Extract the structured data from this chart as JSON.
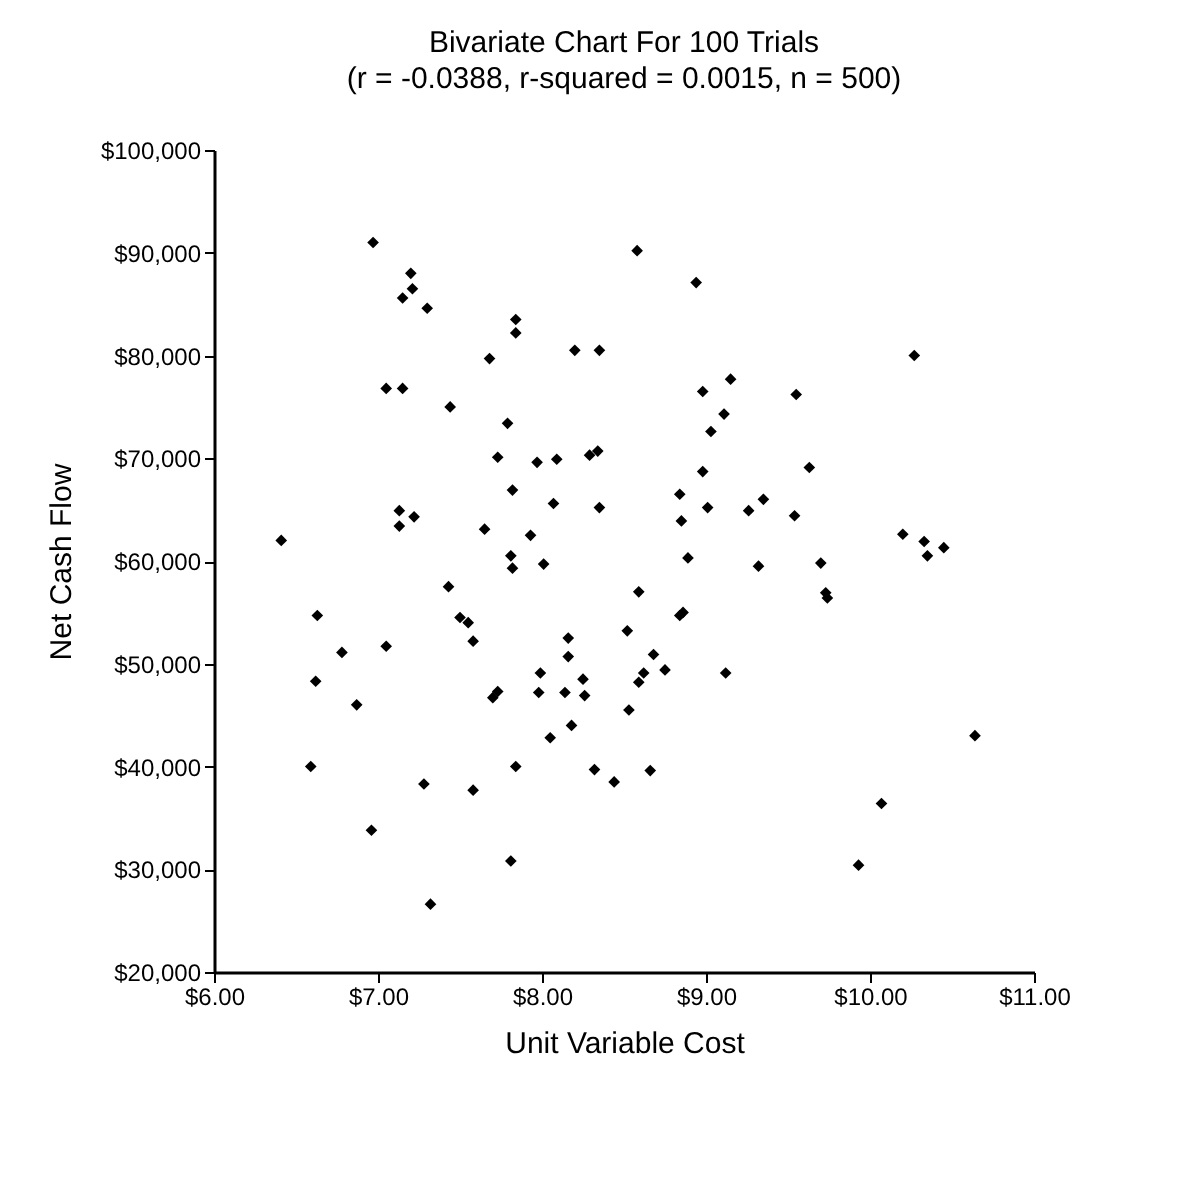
{
  "chart_data": {
    "type": "scatter",
    "title": "Bivariate Chart For 100 Trials",
    "subtitle": "(r = -0.0388, r-squared = 0.0015, n = 500)",
    "xlabel": "Unit Variable Cost",
    "ylabel": "Net Cash Flow",
    "xlim": [
      6,
      11
    ],
    "ylim": [
      20000,
      100000
    ],
    "xticks": [
      {
        "value": 6,
        "label": "$6.00"
      },
      {
        "value": 7,
        "label": "$7.00"
      },
      {
        "value": 8,
        "label": "$8.00"
      },
      {
        "value": 9,
        "label": "$9.00"
      },
      {
        "value": 10,
        "label": "$10.00"
      },
      {
        "value": 11,
        "label": "$11.00"
      }
    ],
    "yticks": [
      {
        "value": 20000,
        "label": "$20,000"
      },
      {
        "value": 30000,
        "label": "$30,000"
      },
      {
        "value": 40000,
        "label": "$40,000"
      },
      {
        "value": 50000,
        "label": "$50,000"
      },
      {
        "value": 60000,
        "label": "$60,000"
      },
      {
        "value": 70000,
        "label": "$70,000"
      },
      {
        "value": 80000,
        "label": "$80,000"
      },
      {
        "value": 90000,
        "label": "$90,000"
      },
      {
        "value": 100000,
        "label": "$100,000"
      }
    ],
    "grid": false,
    "marker": "diamond",
    "series": [
      {
        "color": "#000000",
        "x": [
          6.97,
          7.2,
          7.21,
          7.15,
          7.3,
          7.84,
          7.84,
          7.68,
          8.2,
          8.35,
          7.05,
          7.15,
          7.44,
          7.79,
          7.73,
          7.97,
          8.09,
          8.29,
          8.34,
          7.82,
          8.07,
          8.35,
          7.13,
          7.13,
          7.22,
          7.65,
          7.93,
          7.81,
          7.82,
          8.01,
          6.41,
          7.43,
          6.63,
          7.5,
          7.55,
          8.58,
          8.94,
          10.27,
          8.98,
          9.15,
          9.55,
          9.11,
          9.03,
          8.98,
          9.63,
          8.84,
          8.85,
          9.01,
          9.26,
          9.35,
          9.54,
          10.2,
          10.33,
          10.35,
          10.45,
          8.89,
          9.32,
          9.7,
          9.73,
          9.74,
          8.59,
          8.84,
          8.86,
          8.52,
          7.58,
          6.78,
          7.05,
          6.62,
          6.87,
          6.59,
          7.28,
          7.58,
          6.96,
          7.32,
          7.81,
          7.84,
          7.7,
          7.73,
          7.99,
          7.98,
          8.16,
          8.16,
          8.14,
          8.25,
          8.26,
          8.05,
          8.18,
          8.32,
          8.68,
          8.62,
          8.59,
          8.75,
          8.53,
          9.12,
          8.44,
          8.66,
          10.64,
          10.07,
          9.93
        ],
        "values": [
          91000,
          88000,
          86500,
          85600,
          84600,
          83500,
          82200,
          79700,
          80500,
          80500,
          76800,
          76800,
          75000,
          73400,
          70100,
          69600,
          69900,
          70300,
          70700,
          66900,
          65600,
          65200,
          64900,
          63400,
          64300,
          63100,
          62500,
          60500,
          59300,
          59700,
          62000,
          57500,
          54700,
          54500,
          54000,
          90200,
          87100,
          80000,
          76500,
          77700,
          76200,
          74300,
          72600,
          68700,
          69100,
          66500,
          63900,
          65200,
          64900,
          66000,
          64400,
          62600,
          61900,
          60500,
          61300,
          60300,
          59500,
          59800,
          56900,
          56400,
          57000,
          54700,
          55000,
          53200,
          52200,
          51100,
          51700,
          48300,
          46000,
          40000,
          38300,
          37700,
          33800,
          26600,
          30800,
          40000,
          46700,
          47300,
          49100,
          47200,
          52500,
          50700,
          47200,
          48500,
          46900,
          42800,
          44000,
          39700,
          50900,
          49100,
          48200,
          49400,
          45500,
          49100,
          38500,
          39600,
          43000,
          36400,
          30400
        ]
      }
    ]
  }
}
